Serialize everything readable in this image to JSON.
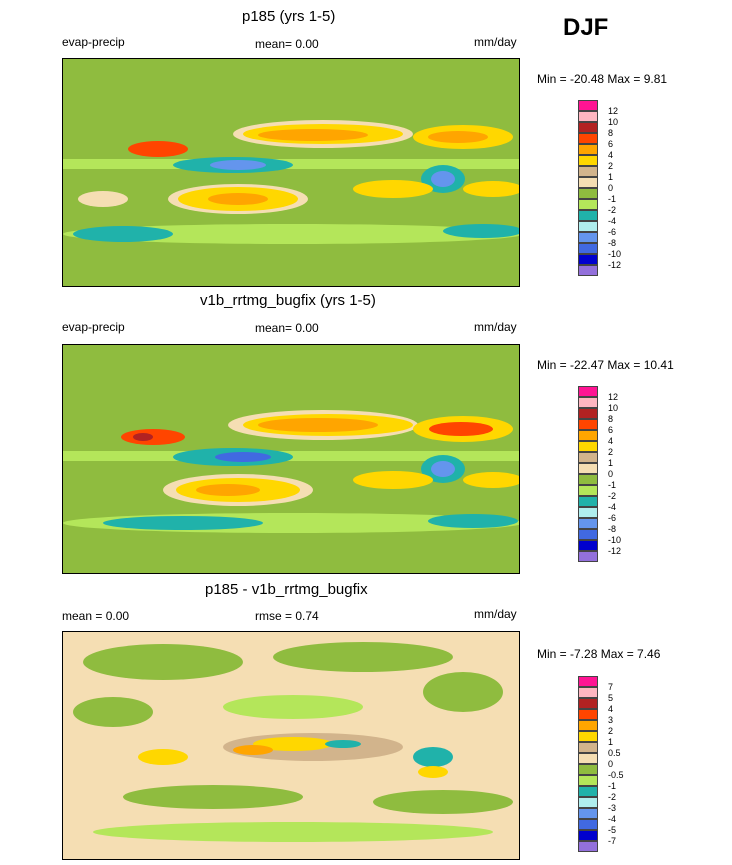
{
  "season": "DJF",
  "panels": [
    {
      "title": "p185 (yrs 1-5)",
      "left_label": "evap-precip",
      "center_label": "mean=  0.00",
      "right_label": "mm/day",
      "minmax": "Min = -20.48 Max =   9.81",
      "colorbar": {
        "labels": [
          "12",
          "10",
          "8",
          "6",
          "4",
          "2",
          "1",
          "0",
          "-1",
          "-2",
          "-4",
          "-6",
          "-8",
          "-10",
          "-12"
        ],
        "colors": [
          "#ff1493",
          "#ffb6c1",
          "#b22222",
          "#ff4500",
          "#ffa500",
          "#ffd700",
          "#d2b48c",
          "#f5deb3",
          "#8fbc3f",
          "#b4e65a",
          "#20b2aa",
          "#afeeee",
          "#6495ed",
          "#4169e1",
          "#0000cd",
          "#9370db"
        ]
      }
    },
    {
      "title": "v1b_rrtmg_bugfix (yrs 1-5)",
      "left_label": "evap-precip",
      "center_label": "mean=  0.00",
      "right_label": "mm/day",
      "minmax": "Min = -22.47 Max =  10.41",
      "colorbar": {
        "labels": [
          "12",
          "10",
          "8",
          "6",
          "4",
          "2",
          "1",
          "0",
          "-1",
          "-2",
          "-4",
          "-6",
          "-8",
          "-10",
          "-12"
        ],
        "colors": [
          "#ff1493",
          "#ffb6c1",
          "#b22222",
          "#ff4500",
          "#ffa500",
          "#ffd700",
          "#d2b48c",
          "#f5deb3",
          "#8fbc3f",
          "#b4e65a",
          "#20b2aa",
          "#afeeee",
          "#6495ed",
          "#4169e1",
          "#0000cd",
          "#9370db"
        ]
      }
    },
    {
      "title": "p185 - v1b_rrtmg_bugfix",
      "left_label": "mean =   0.00",
      "center_label": "rmse =   0.74",
      "right_label": "mm/day",
      "minmax": "Min =  -7.28 Max =   7.46",
      "colorbar": {
        "labels": [
          "7",
          "5",
          "4",
          "3",
          "2",
          "1",
          "0.5",
          "0",
          "-0.5",
          "-1",
          "-2",
          "-3",
          "-4",
          "-5",
          "-7"
        ],
        "colors": [
          "#ff1493",
          "#ffb6c1",
          "#b22222",
          "#ff4500",
          "#ffa500",
          "#ffd700",
          "#d2b48c",
          "#f5deb3",
          "#8fbc3f",
          "#b4e65a",
          "#20b2aa",
          "#afeeee",
          "#6495ed",
          "#4169e1",
          "#0000cd",
          "#9370db"
        ]
      }
    }
  ]
}
